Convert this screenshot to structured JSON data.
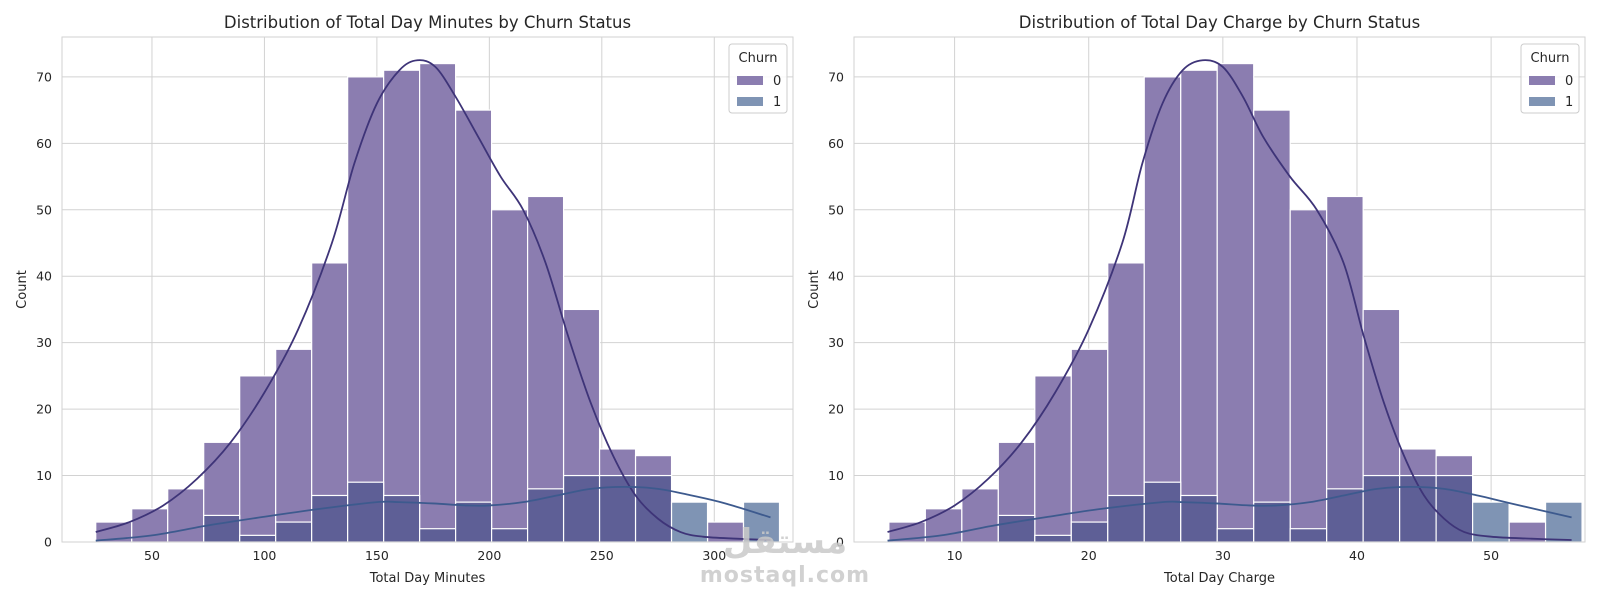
{
  "watermark": {
    "text": "mostaql.com"
  },
  "colors": {
    "churn0": "#8b7db0",
    "churn1": "#7f94b4",
    "overlap": "#5e5f96",
    "kde0": "#3e3478",
    "kde1": "#3d5a8e",
    "grid": "#d2d2d2",
    "edge": "#ffffff"
  },
  "chart_data": [
    {
      "type": "bar",
      "title": "Distribution of Total Day Minutes by Churn Status",
      "xlabel": "Total Day Minutes",
      "ylabel": "Count",
      "xlim": [
        10,
        335
      ],
      "ylim": [
        0,
        76
      ],
      "xticks": [
        50,
        100,
        150,
        200,
        250,
        300
      ],
      "yticks": [
        0,
        10,
        20,
        30,
        40,
        50,
        60,
        70
      ],
      "grid": true,
      "legend": {
        "title": "Churn",
        "position": "top-right",
        "entries": [
          "0",
          "1"
        ]
      },
      "bin_edges": [
        25,
        41,
        57,
        73,
        89,
        105,
        121,
        137,
        153,
        169,
        185,
        201,
        217,
        233,
        249,
        265,
        281,
        297,
        313,
        329
      ],
      "series": [
        {
          "name": "0",
          "values": [
            3,
            5,
            8,
            15,
            25,
            29,
            42,
            70,
            71,
            72,
            65,
            50,
            52,
            35,
            14,
            13,
            0,
            3,
            0
          ]
        },
        {
          "name": "1",
          "values": [
            0,
            0,
            0,
            4,
            1,
            3,
            7,
            9,
            7,
            2,
            6,
            2,
            8,
            10,
            10,
            10,
            6,
            0,
            6
          ]
        }
      ],
      "kde": [
        {
          "name": "0",
          "x": [
            25,
            40,
            55,
            70,
            85,
            100,
            115,
            130,
            140,
            150,
            160,
            168,
            176,
            185,
            195,
            205,
            215,
            225,
            235,
            245,
            255,
            265,
            275,
            285,
            295,
            310,
            325
          ],
          "y": [
            1.5,
            3,
            5.5,
            9.5,
            15,
            22.5,
            32,
            45,
            57,
            66,
            71,
            72.5,
            71.5,
            67,
            61,
            55,
            50,
            42,
            31,
            21,
            13,
            7,
            3.5,
            1.5,
            0.8,
            0.5,
            0.3
          ]
        },
        {
          "name": "1",
          "x": [
            25,
            50,
            75,
            100,
            125,
            150,
            160,
            175,
            190,
            200,
            215,
            230,
            245,
            260,
            275,
            290,
            305,
            325
          ],
          "y": [
            0.2,
            1,
            2.5,
            3.8,
            5,
            6,
            6,
            5.8,
            5.5,
            5.5,
            6,
            7,
            8,
            8.3,
            8,
            7,
            5.8,
            3.7
          ]
        }
      ]
    },
    {
      "type": "bar",
      "title": "Distribution of Total Day Charge by Churn Status",
      "xlabel": "Total Day Charge",
      "ylabel": "Count",
      "xlim": [
        2.5,
        57
      ],
      "ylim": [
        0,
        76
      ],
      "xticks": [
        10,
        20,
        30,
        40,
        50
      ],
      "yticks": [
        0,
        10,
        20,
        30,
        40,
        50,
        60,
        70
      ],
      "grid": true,
      "legend": {
        "title": "Churn",
        "position": "top-right",
        "entries": [
          "0",
          "1"
        ]
      },
      "bin_edges": [
        5.1,
        7.82,
        10.54,
        13.26,
        15.98,
        18.7,
        21.42,
        24.14,
        26.86,
        29.58,
        32.3,
        35.02,
        37.74,
        40.46,
        43.18,
        45.9,
        48.62,
        51.34,
        54.06,
        56.78
      ],
      "series": [
        {
          "name": "0",
          "values": [
            3,
            5,
            8,
            15,
            25,
            29,
            42,
            70,
            71,
            72,
            65,
            50,
            52,
            35,
            14,
            13,
            0,
            3,
            0
          ]
        },
        {
          "name": "1",
          "values": [
            0,
            0,
            0,
            4,
            1,
            3,
            7,
            9,
            7,
            2,
            6,
            2,
            8,
            10,
            10,
            10,
            6,
            0,
            6
          ]
        }
      ],
      "kde": [
        {
          "name": "0",
          "x": [
            5,
            7.5,
            10,
            12.5,
            15,
            17.5,
            20,
            22.5,
            24,
            25.5,
            27,
            28.5,
            30,
            31.5,
            33,
            35,
            37,
            39,
            40.5,
            42,
            43.5,
            45,
            46.5,
            48,
            50,
            53,
            56
          ],
          "y": [
            1.5,
            3,
            5.5,
            9.5,
            15,
            22.5,
            32,
            45,
            57,
            66,
            71,
            72.5,
            71.5,
            67,
            61,
            55,
            50,
            42,
            31,
            21,
            13,
            7,
            3.5,
            1.5,
            0.8,
            0.5,
            0.3
          ]
        },
        {
          "name": "1",
          "x": [
            5,
            9,
            13,
            17,
            21,
            25.5,
            27,
            29.5,
            32,
            34,
            36.5,
            39,
            41.5,
            44,
            46.5,
            49,
            51.5,
            56
          ],
          "y": [
            0.2,
            1,
            2.5,
            3.8,
            5,
            6,
            6,
            5.8,
            5.5,
            5.5,
            6,
            7,
            8,
            8.3,
            8,
            7,
            5.8,
            3.7
          ]
        }
      ]
    }
  ]
}
